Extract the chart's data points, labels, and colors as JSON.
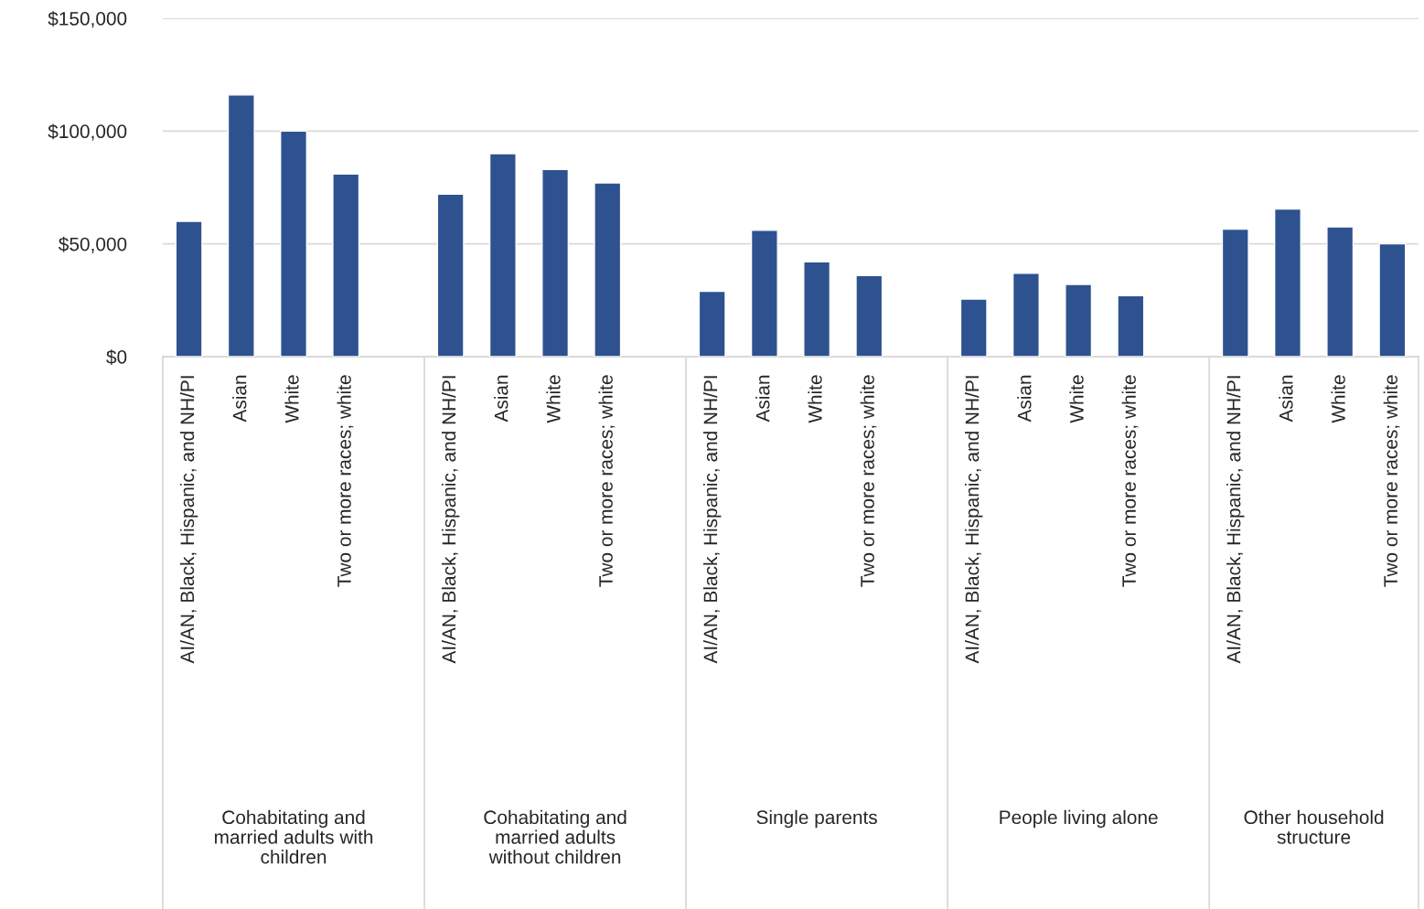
{
  "chart_data": {
    "type": "bar",
    "categories": [
      "AI/AN, Black, Hispanic, and NH/PI",
      "Asian",
      "White",
      "Two or more races; white",
      null,
      "AI/AN, Black, Hispanic, and NH/PI",
      "Asian",
      "White",
      "Two or more races; white",
      null,
      "AI/AN, Black, Hispanic, and NH/PI",
      "Asian",
      "White",
      "Two or more races; white",
      null,
      "AI/AN, Black, Hispanic, and NH/PI",
      "Asian",
      "White",
      "Two or more races; white",
      null,
      "AI/AN, Black, Hispanic, and NH/PI",
      "Asian",
      "White",
      "Two or more races; white"
    ],
    "values": [
      60000,
      116000,
      100000,
      81000,
      null,
      72000,
      90000,
      83000,
      77000,
      null,
      29000,
      56000,
      42000,
      36000,
      null,
      25500,
      37000,
      32000,
      27000,
      null,
      56500,
      65500,
      57500,
      50000
    ],
    "color": "#2e528f",
    "ylim": [
      0,
      150000
    ],
    "yticks": [
      {
        "value": 0,
        "label": "$0"
      },
      {
        "value": 50000,
        "label": "$50,000"
      },
      {
        "value": 100000,
        "label": "$100,000"
      },
      {
        "value": 150000,
        "label": "$150,000"
      }
    ],
    "grid": "y",
    "annotations": [
      "Cohabitating and\nmarried adults with\nchildren",
      "Cohabitating and\nmarried adults\nwithout children",
      "Single parents",
      "People living alone",
      "Other household\nstructure"
    ]
  }
}
